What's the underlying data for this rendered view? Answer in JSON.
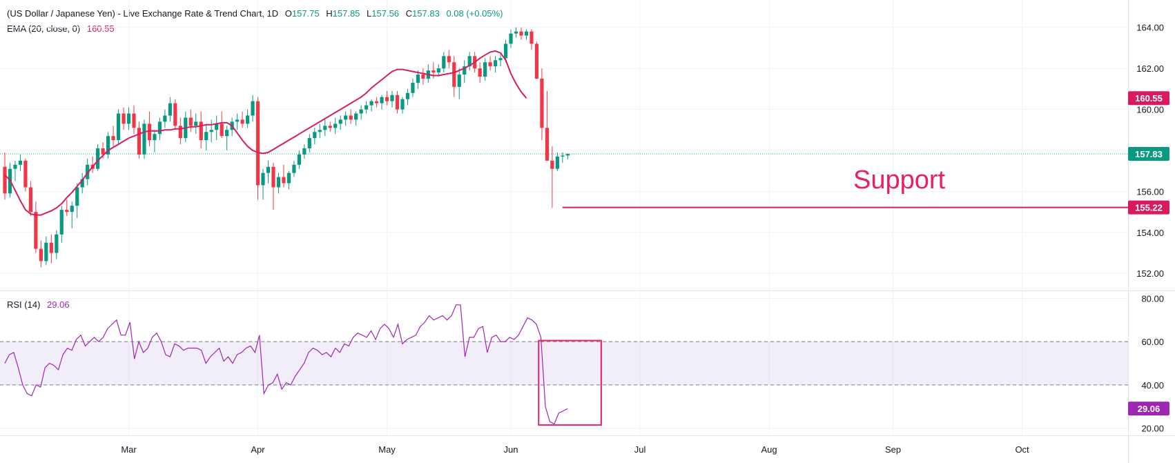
{
  "legend": {
    "main_title": "(US Dollar / Japanese Yen) - Live Exchange Rate & Trend Chart, 1D",
    "o_label": "O",
    "o_value": "157.75",
    "h_label": "H",
    "h_value": "157.85",
    "l_label": "L",
    "l_value": "157.56",
    "c_label": "C",
    "c_value": "157.83",
    "change": "0.08 (+0.05%)",
    "ema_label": "EMA (20, close, 0)",
    "ema_value": "160.55",
    "rsi_label": "RSI (14)",
    "rsi_value": "29.06"
  },
  "colors": {
    "up": "#089981",
    "down": "#f23645",
    "ema": "#d81b60",
    "rsi": "#9c27b0",
    "rsi_band": "#7e57c2",
    "support": "#d81b60",
    "last_price": "#089981",
    "box": "#e91e63"
  },
  "chart_data": [
    {
      "type": "candlestick",
      "title": "(US Dollar / Japanese Yen) - Live Exchange Rate & Trend Chart, 1D",
      "ylim": [
        151.2,
        165.0
      ],
      "yticks": [
        "164.00",
        "162.00",
        "160.00",
        "158.00",
        "156.00",
        "154.00",
        "152.00"
      ],
      "ytick_values": [
        164,
        162,
        160,
        158,
        156,
        154,
        152
      ],
      "xticks": [
        "Mar",
        "Apr",
        "May",
        "Jun",
        "Jul",
        "Aug",
        "Sep",
        "Oct"
      ],
      "xtick_index": [
        24,
        49,
        74,
        98,
        123,
        148,
        172,
        197
      ],
      "last_price": "157.83",
      "ema_badge": "160.55",
      "support_badge": "155.22",
      "support_label": "Support",
      "support_level": 155.22,
      "support_from_index": 108,
      "candles": [
        [
          157.2,
          157.9,
          155.6,
          155.9
        ],
        [
          155.9,
          157.4,
          155.7,
          157.1
        ],
        [
          157.1,
          157.5,
          156.5,
          157.3
        ],
        [
          157.3,
          157.8,
          157.0,
          157.5
        ],
        [
          157.5,
          157.6,
          156.0,
          156.2
        ],
        [
          156.2,
          156.5,
          154.8,
          155.0
        ],
        [
          155.0,
          155.5,
          153.0,
          153.2
        ],
        [
          153.2,
          153.6,
          152.3,
          152.6
        ],
        [
          152.6,
          153.8,
          152.4,
          153.5
        ],
        [
          153.5,
          153.9,
          152.5,
          153.0
        ],
        [
          153.0,
          154.1,
          152.7,
          153.9
        ],
        [
          153.9,
          155.3,
          153.5,
          155.1
        ],
        [
          155.1,
          155.6,
          154.8,
          155.0
        ],
        [
          155.0,
          155.5,
          154.2,
          155.3
        ],
        [
          155.3,
          156.4,
          154.7,
          156.2
        ],
        [
          156.2,
          156.9,
          155.9,
          156.6
        ],
        [
          156.6,
          157.6,
          156.3,
          157.3
        ],
        [
          157.3,
          157.7,
          156.9,
          157.1
        ],
        [
          157.1,
          158.3,
          157.0,
          158.1
        ],
        [
          158.1,
          158.4,
          157.6,
          157.8
        ],
        [
          157.8,
          158.9,
          157.6,
          158.7
        ],
        [
          158.7,
          159.2,
          158.2,
          158.5
        ],
        [
          158.5,
          160.0,
          158.3,
          159.8
        ],
        [
          159.8,
          160.1,
          159.0,
          159.3
        ],
        [
          159.3,
          160.1,
          159.0,
          159.8
        ],
        [
          159.8,
          160.2,
          158.8,
          159.1
        ],
        [
          159.1,
          159.4,
          157.6,
          157.8
        ],
        [
          157.8,
          159.5,
          157.6,
          159.3
        ],
        [
          159.3,
          159.9,
          158.2,
          158.5
        ],
        [
          158.5,
          159.0,
          157.9,
          158.8
        ],
        [
          158.8,
          159.6,
          158.5,
          159.4
        ],
        [
          159.4,
          160.0,
          159.1,
          159.7
        ],
        [
          159.7,
          160.6,
          159.4,
          160.3
        ],
        [
          160.3,
          160.5,
          159.0,
          159.2
        ],
        [
          159.2,
          159.6,
          158.3,
          158.6
        ],
        [
          158.6,
          159.9,
          158.4,
          159.6
        ],
        [
          159.6,
          160.0,
          158.9,
          159.2
        ],
        [
          159.2,
          159.8,
          158.8,
          159.4
        ],
        [
          159.4,
          159.9,
          158.1,
          158.5
        ],
        [
          158.5,
          159.3,
          158.0,
          158.9
        ],
        [
          158.9,
          159.5,
          158.4,
          159.0
        ],
        [
          159.0,
          159.7,
          158.5,
          159.3
        ],
        [
          159.3,
          159.9,
          158.6,
          158.7
        ],
        [
          158.7,
          159.2,
          158.0,
          159.0
        ],
        [
          159.0,
          159.6,
          158.7,
          159.4
        ],
        [
          159.4,
          159.8,
          159.0,
          159.5
        ],
        [
          159.5,
          159.9,
          159.1,
          159.3
        ],
        [
          159.3,
          160.0,
          159.1,
          159.7
        ],
        [
          159.7,
          160.7,
          159.4,
          160.4
        ],
        [
          160.4,
          160.6,
          155.6,
          156.3
        ],
        [
          156.3,
          157.1,
          155.6,
          156.9
        ],
        [
          156.9,
          157.5,
          156.4,
          157.2
        ],
        [
          157.2,
          157.4,
          155.1,
          156.2
        ],
        [
          156.2,
          156.9,
          155.9,
          156.7
        ],
        [
          156.7,
          157.3,
          156.2,
          156.4
        ],
        [
          156.4,
          157.0,
          156.1,
          156.9
        ],
        [
          156.9,
          157.5,
          156.7,
          157.3
        ],
        [
          157.3,
          158.0,
          157.1,
          157.8
        ],
        [
          157.8,
          158.3,
          157.6,
          158.1
        ],
        [
          158.1,
          158.8,
          157.9,
          158.6
        ],
        [
          158.6,
          159.1,
          158.3,
          158.9
        ],
        [
          158.9,
          159.3,
          158.6,
          159.0
        ],
        [
          159.0,
          159.5,
          158.7,
          159.2
        ],
        [
          159.2,
          159.4,
          158.9,
          159.1
        ],
        [
          159.1,
          159.6,
          158.8,
          159.3
        ],
        [
          159.3,
          159.7,
          159.0,
          159.5
        ],
        [
          159.5,
          159.9,
          159.2,
          159.7
        ],
        [
          159.7,
          160.0,
          159.3,
          159.5
        ],
        [
          159.5,
          159.9,
          159.2,
          159.8
        ],
        [
          159.8,
          160.2,
          159.5,
          160.0
        ],
        [
          160.0,
          160.4,
          159.8,
          160.2
        ],
        [
          160.2,
          160.5,
          159.9,
          160.4
        ],
        [
          160.4,
          160.6,
          160.1,
          160.3
        ],
        [
          160.3,
          160.7,
          160.0,
          160.6
        ],
        [
          160.6,
          160.9,
          160.2,
          160.4
        ],
        [
          160.4,
          160.9,
          160.1,
          160.7
        ],
        [
          160.7,
          160.9,
          159.8,
          160.0
        ],
        [
          160.0,
          160.6,
          159.8,
          160.5
        ],
        [
          160.5,
          161.0,
          160.2,
          160.8
        ],
        [
          160.8,
          161.5,
          160.6,
          161.3
        ],
        [
          161.3,
          161.9,
          161.0,
          161.7
        ],
        [
          161.7,
          162.0,
          161.2,
          161.5
        ],
        [
          161.5,
          162.2,
          161.3,
          161.9
        ],
        [
          161.9,
          162.3,
          161.5,
          161.8
        ],
        [
          161.8,
          162.2,
          161.6,
          162.0
        ],
        [
          162.0,
          162.8,
          161.8,
          162.6
        ],
        [
          162.6,
          162.9,
          162.0,
          162.3
        ],
        [
          162.3,
          162.6,
          160.6,
          161.1
        ],
        [
          161.1,
          162.0,
          160.5,
          161.7
        ],
        [
          161.7,
          162.4,
          161.3,
          162.1
        ],
        [
          162.1,
          162.8,
          161.9,
          162.6
        ],
        [
          162.6,
          162.8,
          161.8,
          162.0
        ],
        [
          162.0,
          162.3,
          161.3,
          161.6
        ],
        [
          161.6,
          162.5,
          161.4,
          162.3
        ],
        [
          162.3,
          162.6,
          161.9,
          162.1
        ],
        [
          162.1,
          162.6,
          161.8,
          162.4
        ],
        [
          162.4,
          162.7,
          162.1,
          162.5
        ],
        [
          162.5,
          163.4,
          162.3,
          163.2
        ],
        [
          163.2,
          163.9,
          163.0,
          163.7
        ],
        [
          163.7,
          164.0,
          163.5,
          163.8
        ],
        [
          163.8,
          164.0,
          163.4,
          163.6
        ],
        [
          163.6,
          163.9,
          163.4,
          163.8
        ],
        [
          163.8,
          163.9,
          162.9,
          163.2
        ],
        [
          163.2,
          163.3,
          161.5,
          161.5
        ],
        [
          161.5,
          162.0,
          158.5,
          159.1
        ],
        [
          159.1,
          160.9,
          157.6,
          157.5
        ],
        [
          157.5,
          158.2,
          155.2,
          157.1
        ],
        [
          157.1,
          157.9,
          157.0,
          157.7
        ],
        [
          157.7,
          157.9,
          157.4,
          157.75
        ],
        [
          157.75,
          157.85,
          157.56,
          157.83
        ]
      ],
      "ema": [
        156.8,
        156.55,
        156.05,
        155.55,
        155.1,
        154.9,
        154.85,
        154.85,
        154.95,
        155.05,
        155.2,
        155.4,
        155.7,
        155.95,
        156.25,
        156.55,
        156.9,
        157.2,
        157.5,
        157.75,
        158.0,
        158.15,
        158.3,
        158.45,
        158.6,
        158.7,
        158.8,
        158.9,
        158.95,
        158.95,
        158.95,
        159.0,
        159.0,
        159.05,
        159.05,
        159.1,
        159.15,
        159.15,
        159.2,
        159.25,
        159.25,
        159.3,
        159.35,
        159.35,
        159.2,
        158.85,
        158.5,
        158.2,
        158.0,
        157.9,
        157.85,
        157.9,
        158.05,
        158.2,
        158.35,
        158.5,
        158.65,
        158.8,
        158.95,
        159.1,
        159.25,
        159.4,
        159.55,
        159.7,
        159.85,
        160.0,
        160.15,
        160.3,
        160.45,
        160.6,
        160.8,
        161.05,
        161.25,
        161.45,
        161.65,
        161.85,
        161.95,
        161.95,
        161.9,
        161.85,
        161.8,
        161.75,
        161.7,
        161.65,
        161.65,
        161.7,
        161.75,
        161.8,
        161.9,
        162.0,
        162.15,
        162.3,
        162.5,
        162.65,
        162.8,
        162.85,
        162.75,
        162.4,
        161.75,
        161.25,
        160.85,
        160.55
      ],
      "ema_start_index": 0
    },
    {
      "type": "line",
      "title": "RSI (14)",
      "ylim": [
        17.0,
        83.0
      ],
      "yticks": [
        "80.00",
        "60.00",
        "40.00",
        "20.00"
      ],
      "ytick_values": [
        80,
        60,
        40,
        20
      ],
      "band": [
        40,
        60
      ],
      "rsi_badge": "29.06",
      "values": [
        50,
        54,
        55,
        48,
        40,
        36,
        35,
        40,
        39,
        48,
        50,
        49,
        47,
        54,
        57,
        56,
        61,
        63,
        58,
        60,
        62,
        60,
        62,
        66,
        68,
        70,
        63,
        63,
        69,
        52,
        60,
        55,
        57,
        62,
        64,
        60,
        54,
        53,
        59,
        58,
        56,
        57,
        57,
        57,
        56,
        50,
        53,
        55,
        57,
        51,
        53,
        50,
        54,
        55,
        57,
        58,
        55,
        63,
        36,
        40,
        41,
        45,
        38,
        41,
        40,
        44,
        47,
        50,
        55,
        57,
        56,
        54,
        55,
        53,
        57,
        55,
        59,
        58,
        62,
        64,
        63,
        62,
        65,
        61,
        66,
        68,
        66,
        62,
        68,
        59,
        61,
        62,
        63,
        67,
        69,
        72,
        70,
        71,
        72,
        70,
        72,
        77,
        77,
        53,
        62,
        62,
        66,
        67,
        55,
        62,
        63,
        60,
        60,
        62,
        61,
        63,
        67,
        71,
        70,
        68,
        62,
        30,
        23,
        22,
        27,
        28,
        29.06
      ],
      "box": {
        "x_from": 119.5,
        "x_to": 133.5,
        "y_from": 21.5,
        "y_to": 60.5
      }
    }
  ]
}
